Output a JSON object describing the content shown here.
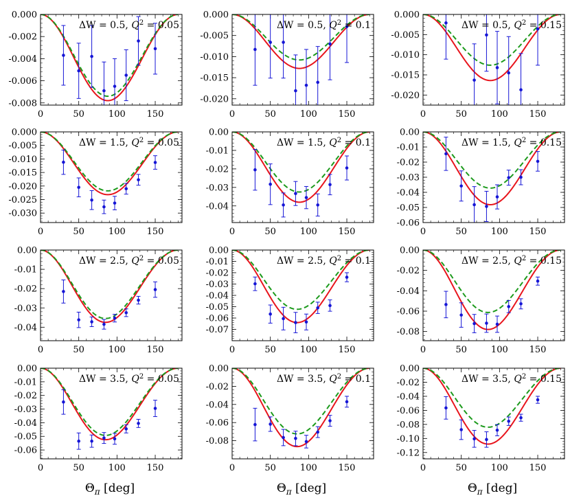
{
  "x_label": "Θ_π [deg]",
  "colors": {
    "red": "#e8141c",
    "green": "#1c9a1c",
    "blue": "#1515d6"
  },
  "chart_data": [
    {
      "type": "line+errorbar",
      "label": "ΔW = 0.5, Q² = 0.05",
      "dW": "0.5",
      "Q2": "0.05",
      "xlim": [
        0,
        185
      ],
      "ylim": [
        -0.0082,
        0
      ],
      "x_ticks": [
        0,
        50,
        100,
        150
      ],
      "y_ticks": [
        0,
        -0.002,
        -0.004,
        -0.006,
        -0.008
      ],
      "y_ticklabels": [
        "0.000",
        "-0.002",
        "-0.004",
        "-0.006",
        "-0.008"
      ],
      "red_min": -0.0078,
      "green_min": -0.0074,
      "curve_center": 88,
      "points": [
        [
          30,
          -0.0037,
          0.0027
        ],
        [
          50,
          -0.0051,
          0.0025
        ],
        [
          67,
          -0.0038,
          0.0028
        ],
        [
          83,
          -0.0069,
          0.0026
        ],
        [
          97,
          -0.0065,
          0.0025
        ],
        [
          112,
          -0.0055,
          0.0023
        ],
        [
          128,
          -0.0024,
          0.0022
        ],
        [
          150,
          -0.0031,
          0.0023
        ]
      ]
    },
    {
      "type": "line+errorbar",
      "label": "ΔW = 0.5, Q² = 0.1",
      "dW": "0.5",
      "Q2": "0.1",
      "xlim": [
        0,
        185
      ],
      "ylim": [
        -0.0215,
        0
      ],
      "x_ticks": [
        0,
        50,
        100,
        150
      ],
      "y_ticks": [
        0,
        -0.005,
        -0.01,
        -0.015,
        -0.02
      ],
      "y_ticklabels": [
        "0.000",
        "-0.005",
        "-0.010",
        "-0.015",
        "-0.020"
      ],
      "red_min": -0.0128,
      "green_min": -0.0108,
      "curve_center": 88,
      "points": [
        [
          30,
          -0.0083,
          0.0085
        ],
        [
          50,
          -0.0066,
          0.0085
        ],
        [
          67,
          -0.0066,
          0.0085
        ],
        [
          83,
          -0.0181,
          0.0085
        ],
        [
          97,
          -0.0168,
          0.0085
        ],
        [
          112,
          -0.0161,
          0.0085
        ],
        [
          128,
          -0.007,
          0.0085
        ],
        [
          150,
          -0.0029,
          0.0085
        ]
      ]
    },
    {
      "type": "line+errorbar",
      "label": "ΔW = 0.5, Q² = 0.15",
      "dW": "0.5",
      "Q2": "0.15",
      "xlim": [
        0,
        185
      ],
      "ylim": [
        -0.0225,
        0
      ],
      "x_ticks": [
        0,
        50,
        100,
        150
      ],
      "y_ticks": [
        0,
        -0.005,
        -0.01,
        -0.015,
        -0.02
      ],
      "y_ticklabels": [
        "0.000",
        "-0.005",
        "-0.010",
        "-0.015",
        "-0.020"
      ],
      "red_min": -0.0164,
      "green_min": -0.0126,
      "curve_center": 88,
      "points": [
        [
          30,
          -0.0021,
          0.009
        ],
        [
          67,
          -0.0163,
          0.009
        ],
        [
          83,
          -0.0051,
          0.009
        ],
        [
          97,
          -0.0132,
          0.009
        ],
        [
          112,
          -0.0145,
          0.009
        ],
        [
          128,
          -0.0187,
          0.009
        ],
        [
          150,
          -0.0036,
          0.009
        ]
      ]
    },
    {
      "type": "line+errorbar",
      "label": "ΔW = 1.5, Q² = 0.05",
      "dW": "1.5",
      "Q2": "0.05",
      "xlim": [
        0,
        185
      ],
      "ylim": [
        -0.0335,
        0
      ],
      "x_ticks": [
        0,
        50,
        100,
        150
      ],
      "y_ticks": [
        0,
        -0.005,
        -0.01,
        -0.015,
        -0.02,
        -0.025,
        -0.03
      ],
      "y_ticklabels": [
        "0.000",
        "-0.005",
        "-0.010",
        "-0.015",
        "-0.020",
        "-0.025",
        "-0.030"
      ],
      "red_min": -0.0232,
      "green_min": -0.0218,
      "curve_center": 88,
      "points": [
        [
          30,
          -0.0112,
          0.0045
        ],
        [
          50,
          -0.0205,
          0.0035
        ],
        [
          67,
          -0.0252,
          0.0035
        ],
        [
          83,
          -0.0277,
          0.0025
        ],
        [
          97,
          -0.0263,
          0.0025
        ],
        [
          112,
          -0.021,
          0.002
        ],
        [
          128,
          -0.0177,
          0.002
        ],
        [
          150,
          -0.0113,
          0.0025
        ]
      ]
    },
    {
      "type": "line+errorbar",
      "label": "ΔW = 1.5, Q² = 0.1",
      "dW": "1.5",
      "Q2": "0.1",
      "xlim": [
        0,
        185
      ],
      "ylim": [
        -0.049,
        0
      ],
      "x_ticks": [
        0,
        50,
        100,
        150
      ],
      "y_ticks": [
        0,
        -0.01,
        -0.02,
        -0.03,
        -0.04
      ],
      "y_ticklabels": [
        "0.00",
        "-0.01",
        "-0.02",
        "-0.03",
        "-0.04"
      ],
      "red_min": -0.038,
      "green_min": -0.0325,
      "curve_center": 88,
      "points": [
        [
          30,
          -0.0205,
          0.011
        ],
        [
          50,
          -0.0283,
          0.011
        ],
        [
          67,
          -0.0395,
          0.0065
        ],
        [
          83,
          -0.0333,
          0.0065
        ],
        [
          97,
          -0.0355,
          0.006
        ],
        [
          112,
          -0.0395,
          0.006
        ],
        [
          128,
          -0.0285,
          0.0055
        ],
        [
          150,
          -0.0195,
          0.0065
        ]
      ]
    },
    {
      "type": "line+errorbar",
      "label": "ΔW = 1.5, Q² = 0.15",
      "dW": "1.5",
      "Q2": "0.15",
      "xlim": [
        0,
        185
      ],
      "ylim": [
        -0.06,
        0
      ],
      "x_ticks": [
        0,
        50,
        100,
        150
      ],
      "y_ticks": [
        0,
        -0.01,
        -0.02,
        -0.03,
        -0.04,
        -0.05,
        -0.06
      ],
      "y_ticklabels": [
        "0.00",
        "-0.01",
        "-0.02",
        "-0.03",
        "-0.04",
        "-0.05",
        "-0.06"
      ],
      "red_min": -0.0482,
      "green_min": -0.0372,
      "curve_center": 88,
      "points": [
        [
          30,
          -0.0145,
          0.011
        ],
        [
          50,
          -0.0358,
          0.01
        ],
        [
          67,
          -0.0482,
          0.012
        ],
        [
          83,
          -0.0493,
          0.01
        ],
        [
          97,
          -0.043,
          0.008
        ],
        [
          112,
          -0.0303,
          0.005
        ],
        [
          128,
          -0.03,
          0.005
        ],
        [
          150,
          -0.0195,
          0.0065
        ]
      ]
    },
    {
      "type": "line+errorbar",
      "label": "ΔW = 2.5, Q² = 0.05",
      "dW": "2.5",
      "Q2": "0.05",
      "xlim": [
        0,
        185
      ],
      "ylim": [
        -0.047,
        0
      ],
      "x_ticks": [
        0,
        50,
        100,
        150
      ],
      "y_ticks": [
        0,
        -0.01,
        -0.02,
        -0.03,
        -0.04
      ],
      "y_ticklabels": [
        "0.00",
        "-0.01",
        "-0.02",
        "-0.03",
        "-0.04"
      ],
      "red_min": -0.0375,
      "green_min": -0.0355,
      "curve_center": 85,
      "points": [
        [
          30,
          -0.0215,
          0.006
        ],
        [
          50,
          -0.0362,
          0.004
        ],
        [
          67,
          -0.0372,
          0.0025
        ],
        [
          83,
          -0.0385,
          0.0025
        ],
        [
          97,
          -0.0353,
          0.002
        ],
        [
          112,
          -0.0325,
          0.002
        ],
        [
          128,
          -0.026,
          0.002
        ],
        [
          150,
          -0.0205,
          0.004
        ]
      ]
    },
    {
      "type": "line+errorbar",
      "label": "ΔW = 2.5, Q² = 0.1",
      "dW": "2.5",
      "Q2": "0.1",
      "xlim": [
        0,
        185
      ],
      "ylim": [
        -0.08,
        0
      ],
      "x_ticks": [
        0,
        50,
        100,
        150
      ],
      "y_ticks": [
        0,
        -0.01,
        -0.02,
        -0.03,
        -0.04,
        -0.05,
        -0.06,
        -0.07
      ],
      "y_ticklabels": [
        "0.00",
        "-0.01",
        "-0.02",
        "-0.03",
        "-0.04",
        "-0.05",
        "-0.06",
        "-0.07"
      ],
      "red_min": -0.064,
      "green_min": -0.0523,
      "curve_center": 85,
      "points": [
        [
          30,
          -0.0298,
          0.006
        ],
        [
          50,
          -0.0565,
          0.008
        ],
        [
          67,
          -0.0605,
          0.01
        ],
        [
          83,
          -0.064,
          0.009
        ],
        [
          97,
          -0.0635,
          0.007
        ],
        [
          112,
          -0.051,
          0.005
        ],
        [
          128,
          -0.049,
          0.005
        ],
        [
          150,
          -0.024,
          0.004
        ]
      ]
    },
    {
      "type": "line+errorbar",
      "label": "ΔW = 2.5, Q² = 0.15",
      "dW": "2.5",
      "Q2": "0.15",
      "xlim": [
        0,
        185
      ],
      "ylim": [
        -0.089,
        0
      ],
      "x_ticks": [
        0,
        50,
        100,
        150
      ],
      "y_ticks": [
        0,
        -0.02,
        -0.04,
        -0.06,
        -0.08
      ],
      "y_ticklabels": [
        "0.00",
        "-0.02",
        "-0.04",
        "-0.06",
        "-0.08"
      ],
      "red_min": -0.078,
      "green_min": -0.0613,
      "curve_center": 85,
      "points": [
        [
          30,
          -0.0535,
          0.013
        ],
        [
          50,
          -0.0638,
          0.012
        ],
        [
          67,
          -0.0722,
          0.009
        ],
        [
          83,
          -0.0718,
          0.009
        ],
        [
          97,
          -0.0728,
          0.008
        ],
        [
          112,
          -0.0555,
          0.006
        ],
        [
          128,
          -0.0528,
          0.005
        ],
        [
          150,
          -0.0305,
          0.004
        ]
      ]
    },
    {
      "type": "line+errorbar",
      "label": "ΔW = 3.5, Q² = 0.05",
      "dW": "3.5",
      "Q2": "0.05",
      "xlim": [
        0,
        185
      ],
      "ylim": [
        -0.0665,
        0
      ],
      "x_ticks": [
        0,
        50,
        100,
        150
      ],
      "y_ticks": [
        0,
        -0.01,
        -0.02,
        -0.03,
        -0.04,
        -0.05,
        -0.06
      ],
      "y_ticklabels": [
        "0.00",
        "-0.01",
        "-0.02",
        "-0.03",
        "-0.04",
        "-0.05",
        "-0.06"
      ],
      "red_min": -0.0525,
      "green_min": -0.0493,
      "curve_center": 85,
      "points": [
        [
          30,
          -0.0248,
          0.009
        ],
        [
          50,
          -0.0535,
          0.006
        ],
        [
          67,
          -0.0535,
          0.0045
        ],
        [
          83,
          -0.0512,
          0.004
        ],
        [
          97,
          -0.0518,
          0.004
        ],
        [
          112,
          -0.0445,
          0.003
        ],
        [
          128,
          -0.0405,
          0.003
        ],
        [
          150,
          -0.0295,
          0.006
        ]
      ]
    },
    {
      "type": "line+errorbar",
      "label": "ΔW = 3.5, Q² = 0.1",
      "dW": "3.5",
      "Q2": "0.1",
      "xlim": [
        0,
        185
      ],
      "ylim": [
        -0.1,
        0
      ],
      "x_ticks": [
        0,
        50,
        100,
        150
      ],
      "y_ticks": [
        0,
        -0.02,
        -0.04,
        -0.06,
        -0.08
      ],
      "y_ticklabels": [
        "0.00",
        "-0.02",
        "-0.04",
        "-0.06",
        "-0.08"
      ],
      "red_min": -0.0865,
      "green_min": -0.0725,
      "curve_center": 85,
      "points": [
        [
          30,
          -0.0622,
          0.018
        ],
        [
          50,
          -0.0617,
          0.008
        ],
        [
          67,
          -0.0765,
          0.009
        ],
        [
          83,
          -0.0775,
          0.008
        ],
        [
          97,
          -0.081,
          0.007
        ],
        [
          112,
          -0.0705,
          0.006
        ],
        [
          128,
          -0.058,
          0.006
        ],
        [
          150,
          -0.037,
          0.006
        ]
      ]
    },
    {
      "type": "line+errorbar",
      "label": "ΔW = 3.5, Q² = 0.15",
      "dW": "3.5",
      "Q2": "0.15",
      "xlim": [
        0,
        185
      ],
      "ylim": [
        -0.129,
        0
      ],
      "x_ticks": [
        0,
        50,
        100,
        150
      ],
      "y_ticks": [
        0,
        -0.02,
        -0.04,
        -0.06,
        -0.08,
        -0.1,
        -0.12
      ],
      "y_ticklabels": [
        "0.00",
        "-0.02",
        "-0.04",
        "-0.06",
        "-0.08",
        "-0.10",
        "-0.12"
      ],
      "red_min": -0.108,
      "green_min": -0.084,
      "curve_center": 85,
      "points": [
        [
          30,
          -0.0565,
          0.016
        ],
        [
          50,
          -0.0875,
          0.014
        ],
        [
          67,
          -0.1005,
          0.012
        ],
        [
          83,
          -0.1015,
          0.011
        ],
        [
          97,
          -0.0882,
          0.008
        ],
        [
          112,
          -0.0755,
          0.006
        ],
        [
          128,
          -0.0705,
          0.005
        ],
        [
          150,
          -0.045,
          0.005
        ]
      ]
    }
  ]
}
